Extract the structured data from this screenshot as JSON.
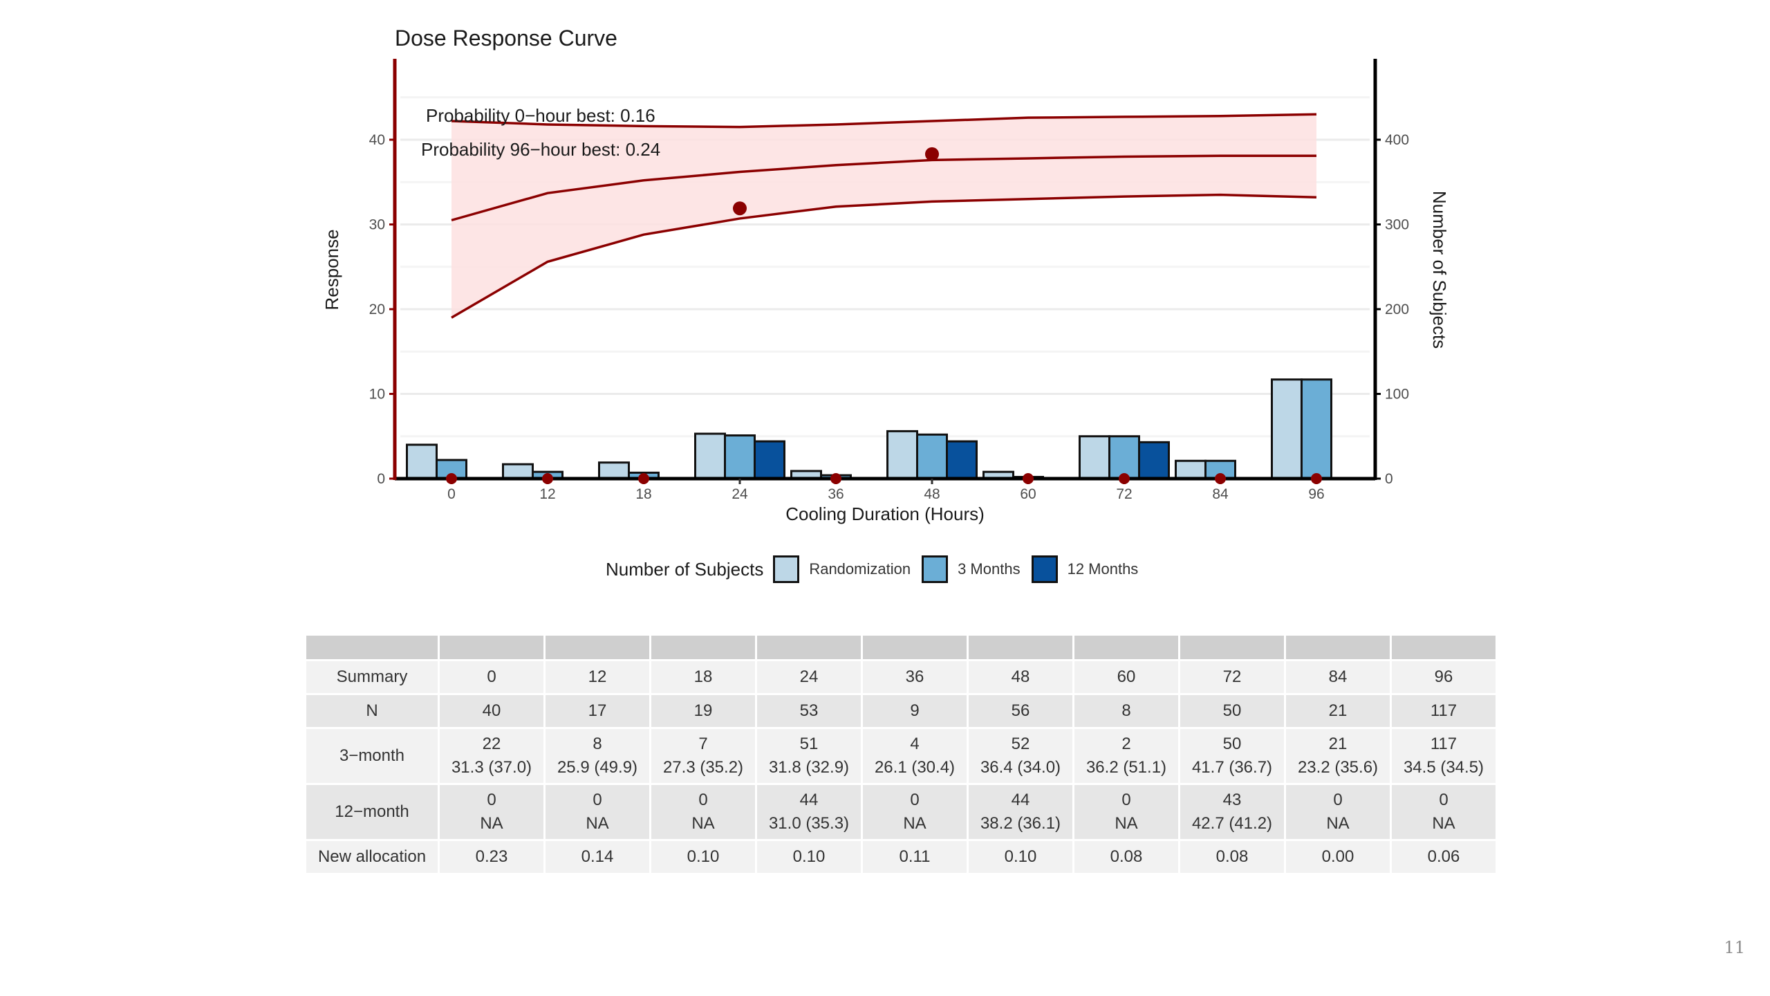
{
  "page_number": "11",
  "colors": {
    "curve": "#8b0000",
    "band": "#fde0e0",
    "left_axis": "#8b0000",
    "right_axis": "#000000",
    "randomization": "#bdd7e7",
    "three_months": "#6baed6",
    "twelve_months": "#08519c"
  },
  "chart_data": {
    "type": "bar+line",
    "title": "Dose Response Curve",
    "xlabel": "Cooling Duration (Hours)",
    "ylabel": "Response",
    "ylabel_right": "Number of Subjects",
    "categories": [
      "0",
      "12",
      "18",
      "24",
      "36",
      "48",
      "60",
      "72",
      "84",
      "96"
    ],
    "ylim": [
      0,
      49.5
    ],
    "yticks": [
      0,
      10,
      20,
      30,
      40
    ],
    "ylim_right": [
      0,
      495
    ],
    "yticks_right": [
      0,
      100,
      200,
      300,
      400
    ],
    "grid": true,
    "annotations": [
      "Probability 0−hour best: 0.16",
      "Probability 96−hour best: 0.24"
    ],
    "curve": {
      "upper": [
        42.2,
        41.8,
        41.6,
        41.5,
        41.8,
        42.2,
        42.6,
        42.7,
        42.8,
        43.0
      ],
      "mean": [
        30.5,
        33.7,
        35.2,
        36.2,
        37.0,
        37.6,
        37.8,
        38.0,
        38.1,
        38.1
      ],
      "lower": [
        19.0,
        25.6,
        28.8,
        30.7,
        32.1,
        32.7,
        33.0,
        33.3,
        33.5,
        33.2
      ]
    },
    "observed_points": [
      0,
      0,
      0,
      31.9,
      0,
      38.3,
      0,
      0,
      0,
      0
    ],
    "legend_title": "Number of Subjects",
    "legend_position": "bottom",
    "series": [
      {
        "name": "Randomization",
        "values": [
          40,
          17,
          19,
          53,
          9,
          56,
          8,
          50,
          21,
          117
        ]
      },
      {
        "name": "3 Months",
        "values": [
          22,
          8,
          7,
          51,
          4,
          52,
          2,
          50,
          21,
          117
        ]
      },
      {
        "name": "12 Months",
        "values": [
          0,
          0,
          0,
          44,
          0,
          44,
          0,
          43,
          0,
          0
        ]
      }
    ]
  },
  "table": {
    "rows": [
      {
        "label": "Summary",
        "cells": [
          "0",
          "12",
          "18",
          "24",
          "36",
          "48",
          "60",
          "72",
          "84",
          "96"
        ]
      },
      {
        "label": "N",
        "cells": [
          "40",
          "17",
          "19",
          "53",
          "9",
          "56",
          "8",
          "50",
          "21",
          "117"
        ]
      },
      {
        "label": "3−month",
        "cells": [
          "22",
          "8",
          "7",
          "51",
          "4",
          "52",
          "2",
          "50",
          "21",
          "117"
        ],
        "cells2": [
          "31.3 (37.0)",
          "25.9 (49.9)",
          "27.3 (35.2)",
          "31.8 (32.9)",
          "26.1 (30.4)",
          "36.4 (34.0)",
          "36.2 (51.1)",
          "41.7 (36.7)",
          "23.2 (35.6)",
          "34.5 (34.5)"
        ]
      },
      {
        "label": "12−month",
        "cells": [
          "0",
          "0",
          "0",
          "44",
          "0",
          "44",
          "0",
          "43",
          "0",
          "0"
        ],
        "cells2": [
          "NA",
          "NA",
          "NA",
          "31.0 (35.3)",
          "NA",
          "38.2 (36.1)",
          "NA",
          "42.7 (41.2)",
          "NA",
          "NA"
        ]
      },
      {
        "label": "New allocation",
        "cells": [
          "0.23",
          "0.14",
          "0.10",
          "0.10",
          "0.11",
          "0.10",
          "0.08",
          "0.08",
          "0.00",
          "0.06"
        ]
      }
    ]
  }
}
